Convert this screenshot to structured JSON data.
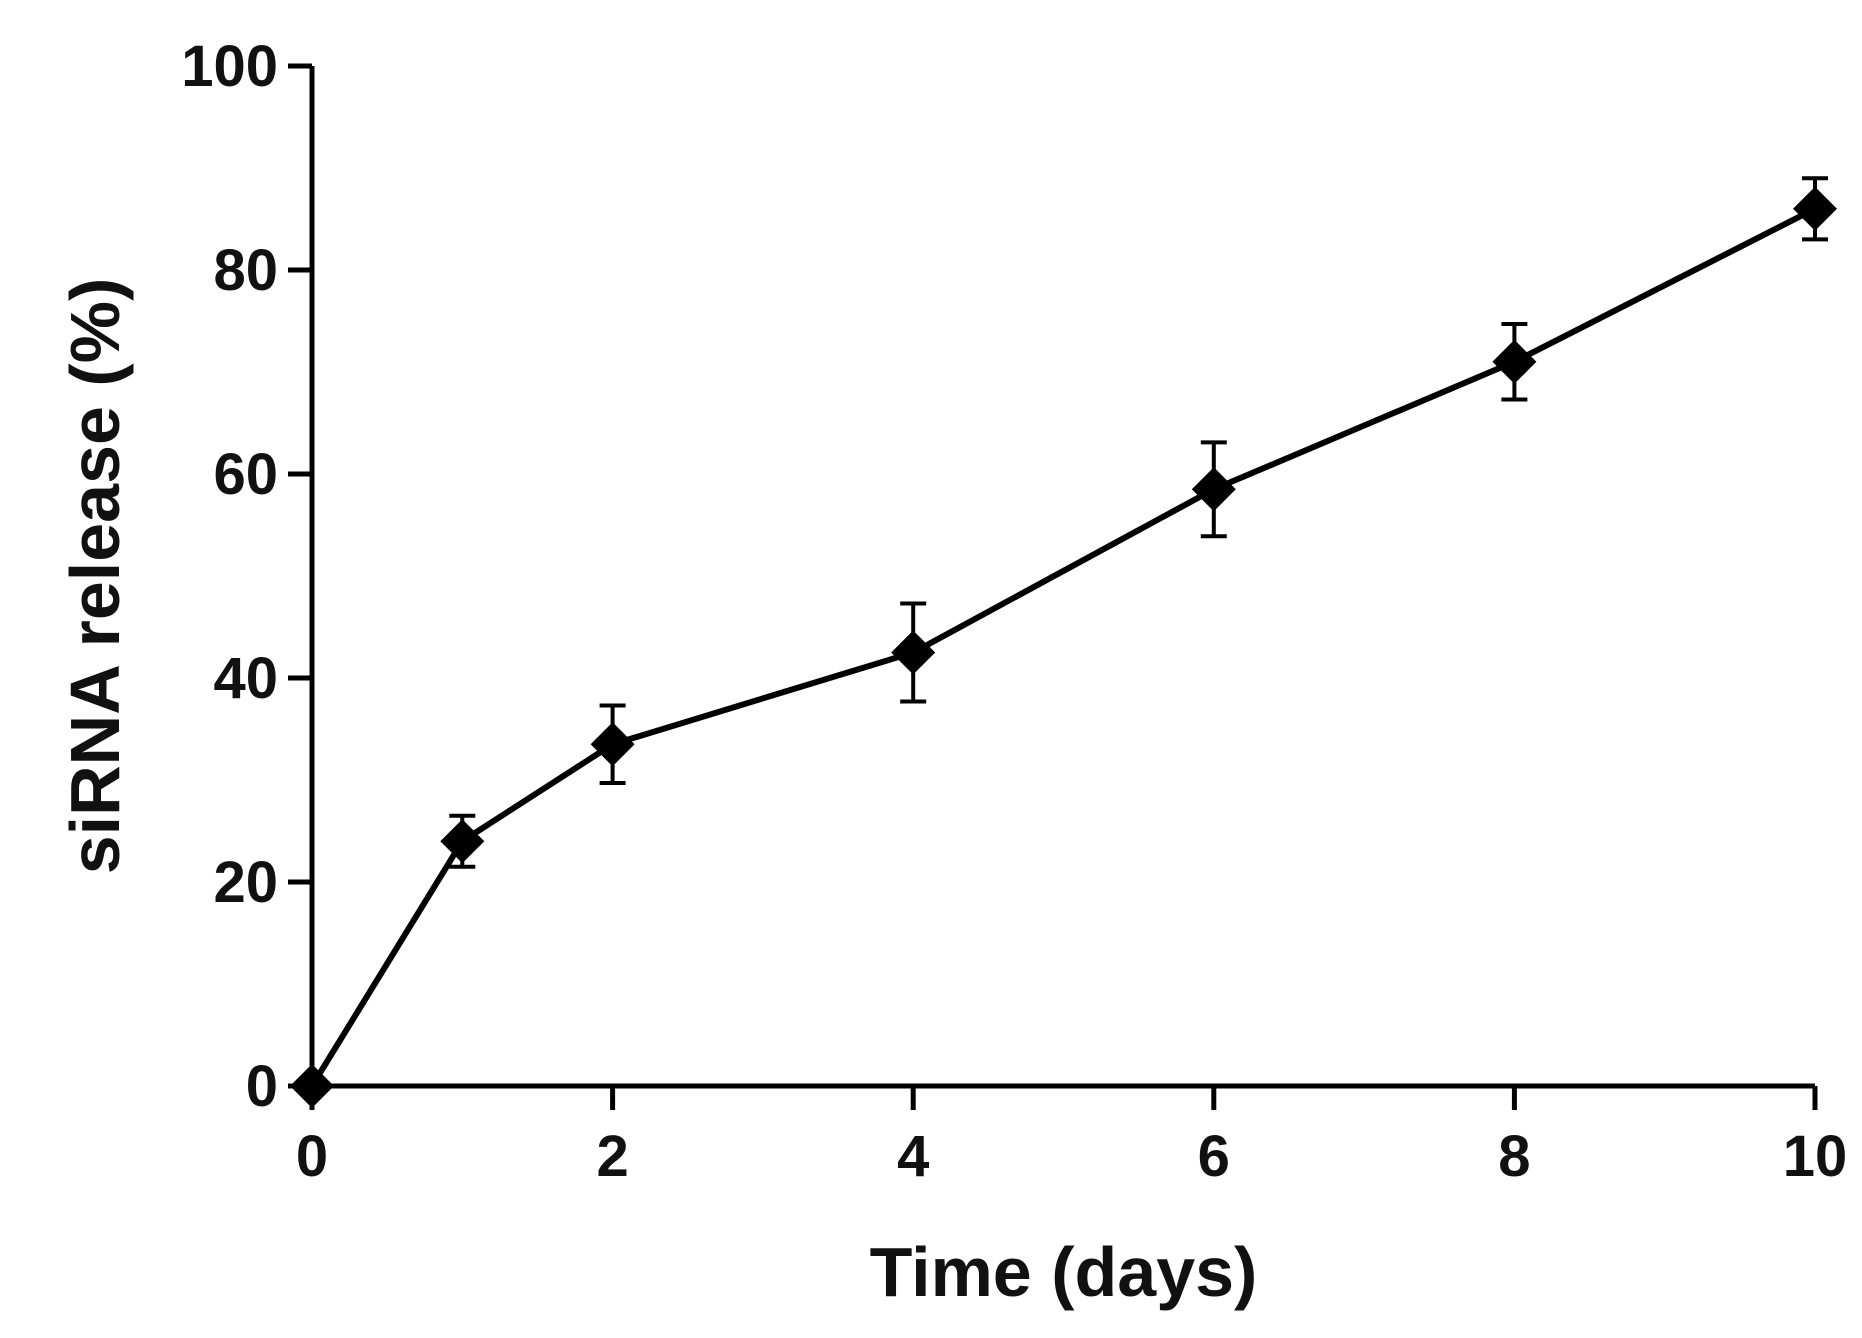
{
  "chart_data": {
    "type": "line",
    "title": "",
    "xlabel": "Time (days)",
    "ylabel": "siRNA release (%)",
    "xlim": [
      0,
      10
    ],
    "ylim": [
      0,
      100
    ],
    "x_ticks": [
      "0",
      "2",
      "4",
      "6",
      "8",
      "10"
    ],
    "y_ticks": [
      "0",
      "20",
      "40",
      "60",
      "80",
      "100"
    ],
    "grid": false,
    "legend": "none",
    "marker": "diamond",
    "color": "#000000",
    "series": [
      {
        "x": [
          0,
          1,
          2,
          4,
          6,
          8,
          10
        ],
        "y": [
          0,
          24,
          33.5,
          42.5,
          58.5,
          71,
          86
        ],
        "error": [
          0,
          2.5,
          3.8,
          4.8,
          4.6,
          3.7,
          3.0
        ]
      }
    ]
  }
}
